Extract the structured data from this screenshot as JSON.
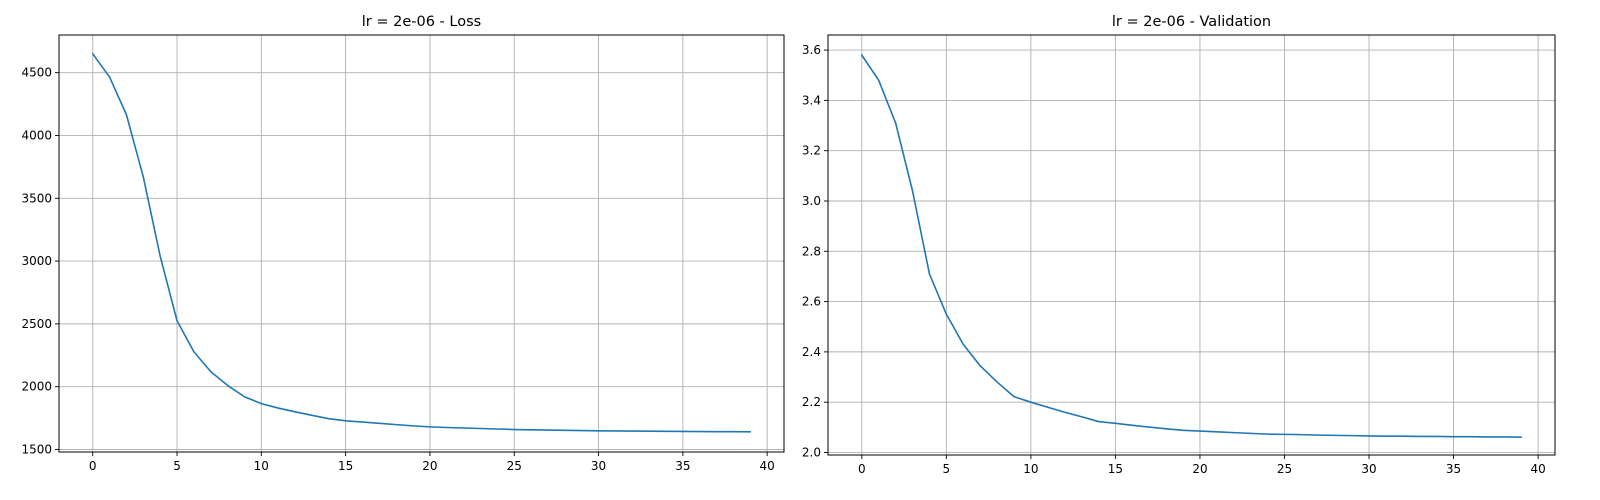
{
  "chart_data": [
    {
      "type": "line",
      "title": "lr = 2e-06 - Loss",
      "xlabel": "",
      "ylabel": "",
      "grid": true,
      "xlim": [
        -2,
        41
      ],
      "ylim": [
        1480,
        4800
      ],
      "xticks": [
        0,
        5,
        10,
        15,
        20,
        25,
        30,
        35,
        40
      ],
      "xtick_labels": [
        "0",
        "5",
        "10",
        "15",
        "20",
        "25",
        "30",
        "35",
        "40"
      ],
      "yticks": [
        1500,
        2000,
        2500,
        3000,
        3500,
        4000,
        4500
      ],
      "ytick_labels": [
        "1500",
        "2000",
        "2500",
        "3000",
        "3500",
        "4000",
        "4500"
      ],
      "series": [
        {
          "color": "#1f77b4",
          "x": [
            0,
            1,
            2,
            3,
            4,
            5,
            6,
            7,
            8,
            9,
            10,
            11,
            12,
            13,
            14,
            15,
            16,
            17,
            18,
            19,
            20,
            21,
            22,
            23,
            24,
            25,
            26,
            27,
            28,
            29,
            30,
            31,
            32,
            33,
            34,
            35,
            36,
            37,
            38,
            39
          ],
          "values": [
            4650,
            4465,
            4165,
            3670,
            3040,
            2525,
            2278,
            2120,
            2010,
            1920,
            1865,
            1830,
            1800,
            1772,
            1745,
            1728,
            1718,
            1708,
            1698,
            1688,
            1680,
            1675,
            1671,
            1667,
            1663,
            1659,
            1657,
            1655,
            1653,
            1651,
            1649,
            1648,
            1647,
            1646,
            1645,
            1644,
            1643,
            1642,
            1642,
            1641
          ]
        }
      ]
    },
    {
      "type": "line",
      "title": "lr = 2e-06 - Validation",
      "xlabel": "",
      "ylabel": "",
      "grid": true,
      "xlim": [
        -2,
        41
      ],
      "ylim": [
        1.99,
        3.66
      ],
      "xticks": [
        0,
        5,
        10,
        15,
        20,
        25,
        30,
        35,
        40
      ],
      "xtick_labels": [
        "0",
        "5",
        "10",
        "15",
        "20",
        "25",
        "30",
        "35",
        "40"
      ],
      "yticks": [
        2.0,
        2.2,
        2.4,
        2.6,
        2.8,
        3.0,
        3.2,
        3.4,
        3.6
      ],
      "ytick_labels": [
        "2.0",
        "2.2",
        "2.4",
        "2.6",
        "2.8",
        "3.0",
        "3.2",
        "3.4",
        "3.6"
      ],
      "series": [
        {
          "color": "#1f77b4",
          "x": [
            0,
            1,
            2,
            3,
            4,
            5,
            6,
            7,
            8,
            9,
            10,
            11,
            12,
            13,
            14,
            15,
            16,
            17,
            18,
            19,
            20,
            21,
            22,
            23,
            24,
            25,
            26,
            27,
            28,
            29,
            30,
            31,
            32,
            33,
            34,
            35,
            36,
            37,
            38,
            39
          ],
          "values": [
            3.58,
            3.48,
            3.31,
            3.04,
            2.71,
            2.55,
            2.43,
            2.345,
            2.28,
            2.222,
            2.2,
            2.18,
            2.16,
            2.142,
            2.123,
            2.116,
            2.108,
            2.101,
            2.094,
            2.088,
            2.085,
            2.082,
            2.079,
            2.076,
            2.073,
            2.072,
            2.071,
            2.069,
            2.068,
            2.067,
            2.066,
            2.065,
            2.065,
            2.064,
            2.064,
            2.063,
            2.063,
            2.062,
            2.062,
            2.061
          ]
        }
      ]
    }
  ]
}
